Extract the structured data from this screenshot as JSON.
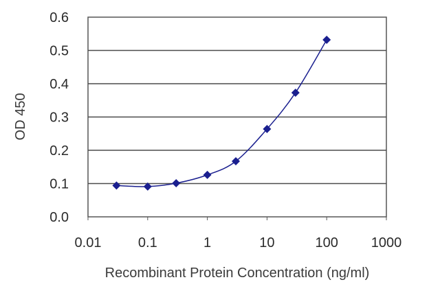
{
  "chart_data": {
    "type": "scatter",
    "title": "",
    "xlabel": "Recombinant Protein Concentration (ng/ml)",
    "ylabel": "OD 450",
    "xscale": "log",
    "xlim": [
      0.01,
      1000
    ],
    "ylim": [
      0,
      0.6
    ],
    "xticks": [
      "0.01",
      "0.1",
      "1",
      "10",
      "100",
      "1000"
    ],
    "yticks": [
      "0.0",
      "0.1",
      "0.2",
      "0.3",
      "0.4",
      "0.5",
      "0.6"
    ],
    "grid": "horizontal",
    "legend": "none",
    "series": [
      {
        "x": [
          0.03,
          0.1,
          0.3,
          1,
          3,
          10,
          30,
          100
        ],
        "y": [
          0.094,
          0.091,
          0.101,
          0.126,
          0.167,
          0.264,
          0.373,
          0.532
        ],
        "line": "smooth",
        "marker": "diamond"
      }
    ],
    "colors": {
      "series": "#1a1f8f",
      "grid": "#4a4a4a",
      "frame": "#555555"
    }
  }
}
